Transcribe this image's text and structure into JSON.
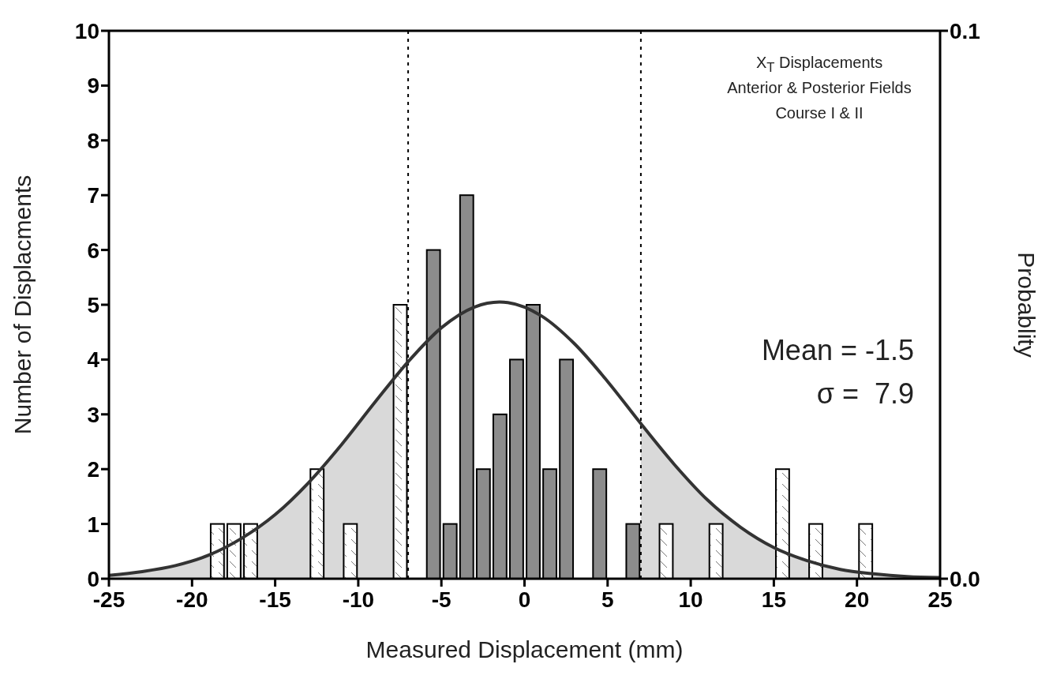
{
  "chart_data": {
    "type": "bar",
    "xlabel": "Measured Displacement (mm)",
    "ylabel": "Number of Displacments",
    "y2label": "Probablity",
    "annotations": [
      "X$_{T}$ Displacements",
      "Anterior & Posterior Fields",
      "Course I & II",
      "Mean = -1.5",
      "σ =  7.9"
    ],
    "xlim": [
      -25,
      25
    ],
    "xticks": [
      -25,
      -20,
      -15,
      -10,
      -5,
      0,
      5,
      10,
      15,
      20,
      25
    ],
    "ylim": [
      0,
      10
    ],
    "yticks": [
      0,
      1,
      2,
      3,
      4,
      5,
      6,
      7,
      8,
      9,
      10
    ],
    "y2lim": [
      0,
      0.1
    ],
    "y2ticks": [
      {
        "value": 0,
        "label": "0.0"
      },
      0.1
    ],
    "ref_lines": [
      {
        "axis": "x",
        "value": -7,
        "color": "#000000",
        "line_style": "dotted"
      },
      {
        "axis": "x",
        "value": 7,
        "color": "#000000",
        "line_style": "dotted"
      }
    ],
    "series": [
      {
        "type": "area",
        "axis": "y2",
        "color": "#d9d9d9",
        "x": [
          -25,
          -23,
          -21,
          -19,
          -17,
          -15,
          -13,
          -11,
          -9,
          -7
        ],
        "values": [
          0.0006,
          0.0013,
          0.0024,
          0.0043,
          0.0074,
          0.0117,
          0.0175,
          0.0245,
          0.0322,
          0.0396
        ]
      },
      {
        "type": "area",
        "axis": "y2",
        "color": "#d9d9d9",
        "x": [
          7,
          9,
          11,
          13,
          15,
          17,
          19,
          21,
          23,
          25
        ],
        "values": [
          0.0283,
          0.0209,
          0.0144,
          0.0094,
          0.0057,
          0.0033,
          0.0017,
          0.0009,
          0.0004,
          0.0002
        ]
      },
      {
        "color": "#ffffff",
        "x": [
          -18.5,
          -17.5,
          -16.5,
          -12.5,
          -10.5,
          -7.5
        ],
        "values": [
          1,
          1,
          1,
          2,
          1,
          5
        ]
      },
      {
        "color": "#8c8c8c",
        "x": [
          -5.5,
          -4.5,
          -3.5,
          -2.5,
          -1.5,
          -0.5,
          0.5,
          1.5,
          2.5,
          4.5,
          6.5
        ],
        "values": [
          6,
          1,
          7,
          2,
          3,
          4,
          5,
          2,
          4,
          2,
          1
        ]
      },
      {
        "color": "#ffffff",
        "x": [
          8.5,
          11.5,
          15.5,
          17.5,
          20.5
        ],
        "values": [
          1,
          1,
          2,
          1,
          1
        ]
      },
      {
        "type": "line",
        "axis": "y2",
        "color": "#333333",
        "x": [
          -25,
          -23,
          -21,
          -19,
          -17,
          -15,
          -13,
          -11,
          -9,
          -7,
          -5,
          -3,
          -1.5,
          -1,
          1,
          3,
          5,
          7,
          9,
          11,
          13,
          15,
          17,
          19,
          21,
          23,
          25
        ],
        "values": [
          0.0006,
          0.0013,
          0.0024,
          0.0043,
          0.0074,
          0.0117,
          0.0175,
          0.0245,
          0.0322,
          0.0396,
          0.0458,
          0.0496,
          0.0505,
          0.0504,
          0.048,
          0.0429,
          0.036,
          0.0283,
          0.0209,
          0.0144,
          0.0094,
          0.0057,
          0.0033,
          0.0017,
          0.0009,
          0.0004,
          0.0002
        ]
      }
    ]
  }
}
